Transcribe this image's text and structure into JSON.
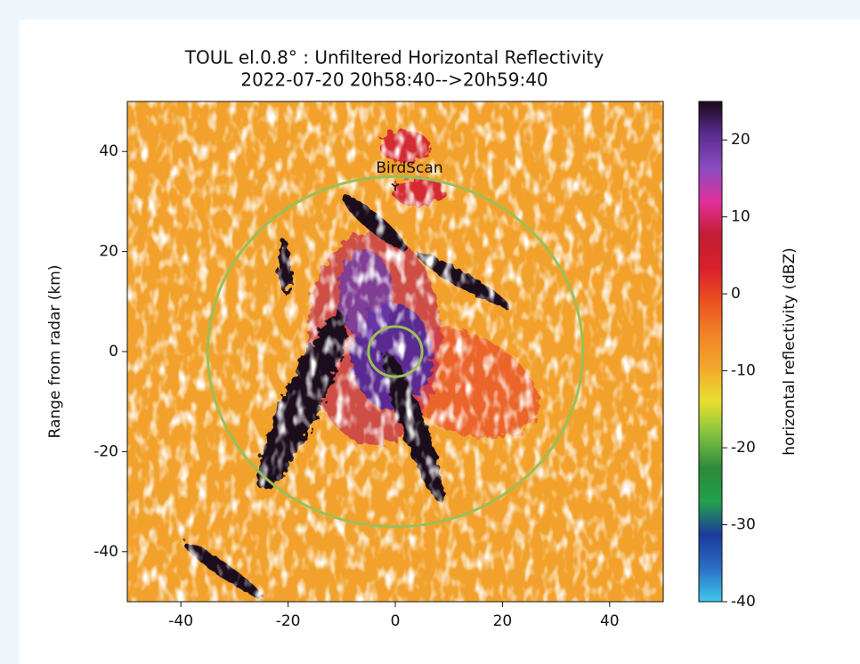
{
  "chart_data": {
    "type": "radar-image",
    "title": "TOUL el.0.8° : Unfiltered Horizontal Reflectivity",
    "subtitle": "2022-07-20 20h58:40-->20h59:40",
    "y_label": "Range from radar (km)",
    "xlim": [
      -50,
      50
    ],
    "ylim": [
      -50,
      50
    ],
    "xticks": [
      -40,
      -20,
      0,
      20,
      40
    ],
    "yticks": [
      -40,
      -20,
      0,
      20,
      40
    ],
    "circles": [
      {
        "radius": 35,
        "color": "#9bbf57"
      },
      {
        "radius": 5,
        "color": "#9bbf57"
      }
    ],
    "annotations": [
      {
        "text": "BirdScan",
        "x": 0,
        "y": 37
      }
    ],
    "marker": {
      "x": 0,
      "y": 33
    },
    "colorbar": {
      "label": "horizontal reflectivity (dBZ)",
      "lim": [
        -40,
        25
      ],
      "ticks": [
        -40,
        -30,
        -20,
        -10,
        0,
        10,
        20
      ],
      "colormap": [
        "#40c8ec",
        "#2a6fc4",
        "#1c3a9c",
        "#22a04a",
        "#2c8a3a",
        "#80c040",
        "#e8e030",
        "#f2a82c",
        "#f08428",
        "#ec5020",
        "#d8202c",
        "#c21e34",
        "#e0309a",
        "#8a4cc0",
        "#5a2c90",
        "#1a0a1a"
      ]
    }
  }
}
